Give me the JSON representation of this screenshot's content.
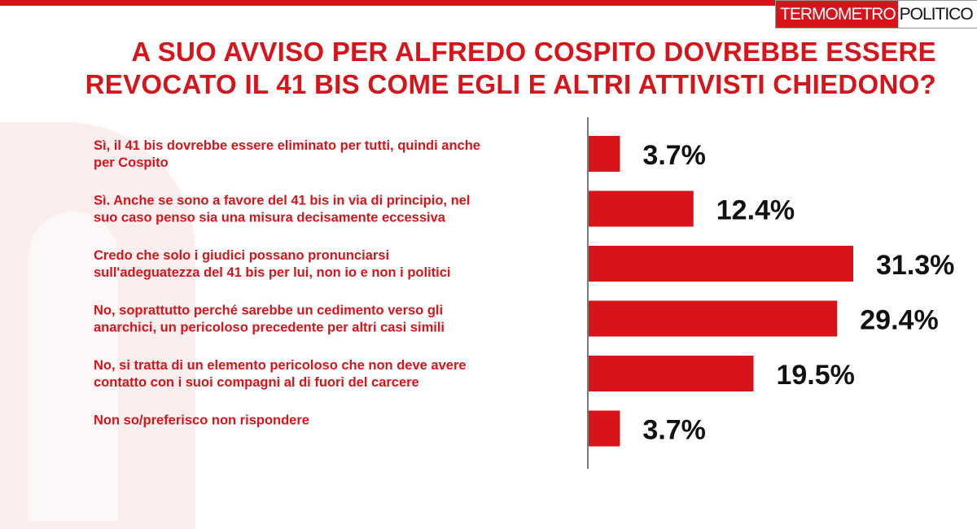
{
  "brand": {
    "part1": "TERMOMETRO",
    "part2": "POLITICO"
  },
  "title": {
    "line1": "A SUO AVVISO PER ALFREDO COSPITO DOVREBBE ESSERE",
    "line2": "REVOCATO IL 41 BIS COME EGLI E ALTRI ATTIVISTI CHIEDONO?"
  },
  "colors": {
    "accent": "#d7141a",
    "value_text": "#111111",
    "axis": "#333333"
  },
  "chart_data": {
    "type": "bar",
    "orientation": "horizontal",
    "categories": [
      [
        "Sì, il 41 bis dovrebbe essere eliminato per tutti, quindi anche",
        "per Cospito"
      ],
      [
        "Sì. Anche se sono a favore del 41 bis in via di principio, nel",
        "suo caso penso sia una misura decisamente eccessiva"
      ],
      [
        "Credo che solo i giudici possano pronunciarsi",
        "sull'adeguatezza del 41 bis per lui, non io e non i politici"
      ],
      [
        "No, soprattutto perché sarebbe un cedimento verso gli",
        "anarchici, un pericoloso precedente per altri casi simili"
      ],
      [
        "No, si tratta di un elemento pericoloso che non deve avere",
        "contatto con i suoi compagni al di fuori del carcere"
      ],
      [
        "Non so/preferisco non rispondere"
      ]
    ],
    "values": [
      3.7,
      12.4,
      31.3,
      29.4,
      19.5,
      3.7
    ],
    "value_labels": [
      "3.7%",
      "12.4%",
      "31.3%",
      "29.4%",
      "19.5%",
      "3.7%"
    ],
    "unit": "%",
    "xlim": [
      0,
      31.3
    ],
    "grid": false,
    "legend": "none"
  }
}
